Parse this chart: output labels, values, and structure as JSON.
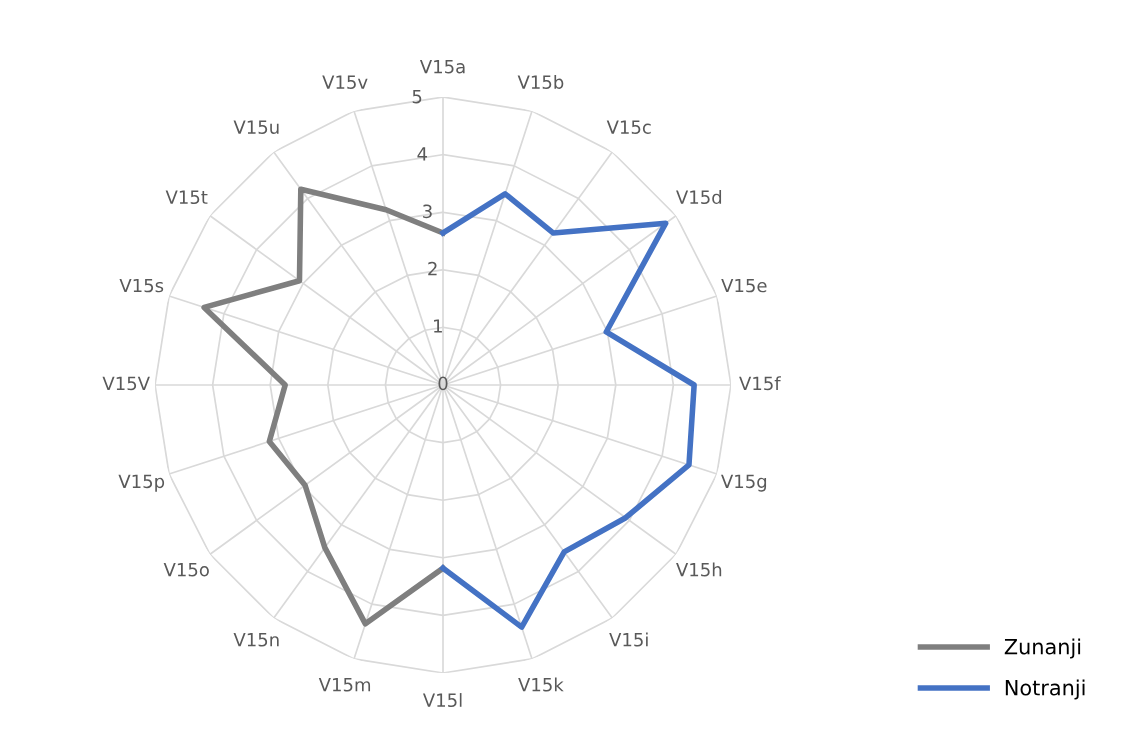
{
  "chart_data": {
    "type": "radar",
    "categories": [
      "V15a",
      "V15b",
      "V15c",
      "V15d",
      "V15e",
      "V15f",
      "V15g",
      "V15h",
      "V15i",
      "V15k",
      "V15l",
      "V15m",
      "V15n",
      "V15o",
      "V15p",
      "V15V",
      "V15s",
      "V15t",
      "V15u",
      "V15v"
    ],
    "series": [
      {
        "name": "Zunanji",
        "color": "#7f7f7f",
        "values": [
          2.64,
          null,
          null,
          null,
          null,
          null,
          null,
          null,
          null,
          null,
          3.18,
          4.36,
          3.49,
          2.96,
          3.17,
          2.74,
          4.36,
          3.08,
          4.2,
          3.2
        ]
      },
      {
        "name": "Notranji",
        "color": "#4472c4",
        "values": [
          2.64,
          3.49,
          3.26,
          4.78,
          2.98,
          4.36,
          4.49,
          3.92,
          3.58,
          4.42,
          3.18,
          null,
          null,
          null,
          null,
          null,
          null,
          null,
          null,
          null
        ]
      }
    ],
    "ylim": [
      0,
      5
    ],
    "yticks": [
      0,
      1,
      2,
      3,
      4,
      5
    ],
    "grid": true,
    "legend": "bottom right"
  }
}
